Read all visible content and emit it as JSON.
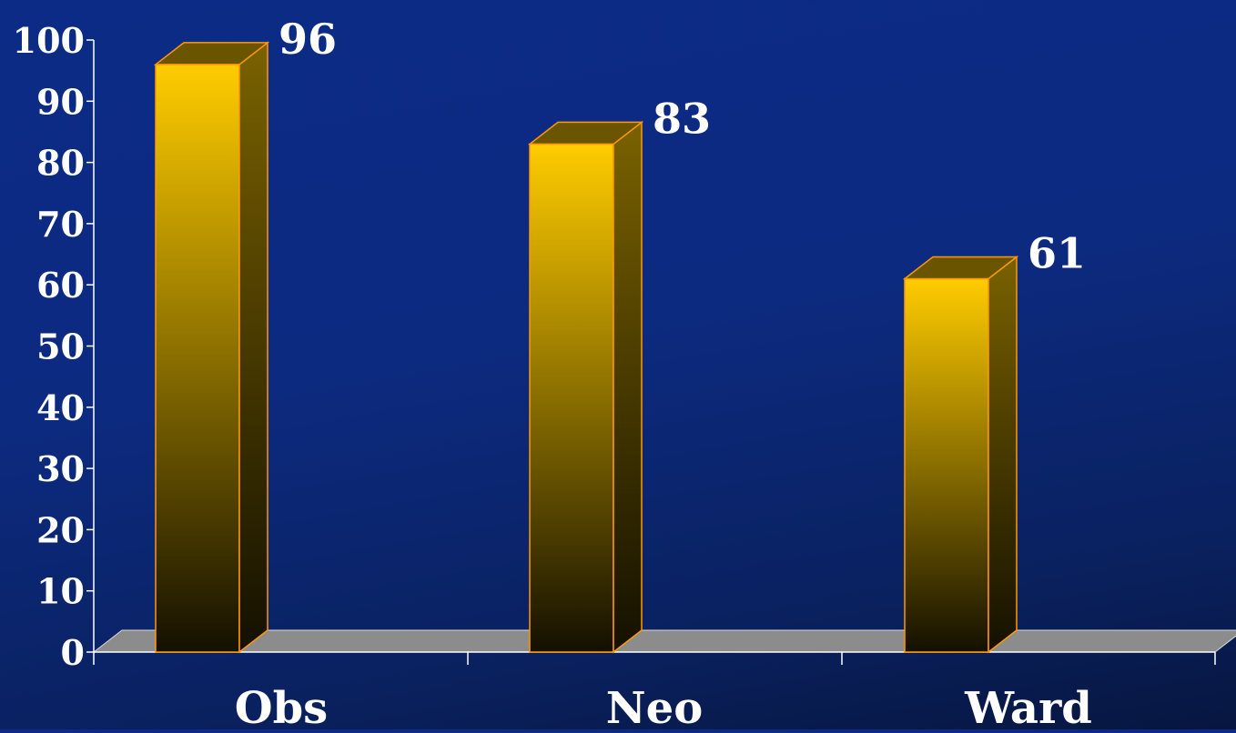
{
  "chart_data": {
    "type": "bar",
    "categories": [
      "Obs",
      "Neo",
      "Ward"
    ],
    "values": [
      96,
      83,
      61
    ],
    "data_labels": [
      "96",
      "83",
      "61"
    ],
    "ylim": [
      0,
      100
    ],
    "y_ticks": [
      0,
      10,
      20,
      30,
      40,
      50,
      60,
      70,
      80,
      90,
      100
    ],
    "y_tick_labels": [
      "0",
      "10",
      "20",
      "30",
      "40",
      "50",
      "60",
      "70",
      "80",
      "90",
      "100"
    ],
    "grid": false,
    "legend": "none",
    "style": "3d-column",
    "colors": {
      "bar_top": "#ffcc00",
      "bar_bottom": "#141000",
      "bar_side": "#7a6200",
      "bar_outline": "#ff9900",
      "floor": "#8c8c8c",
      "text": "#ffffff"
    }
  }
}
